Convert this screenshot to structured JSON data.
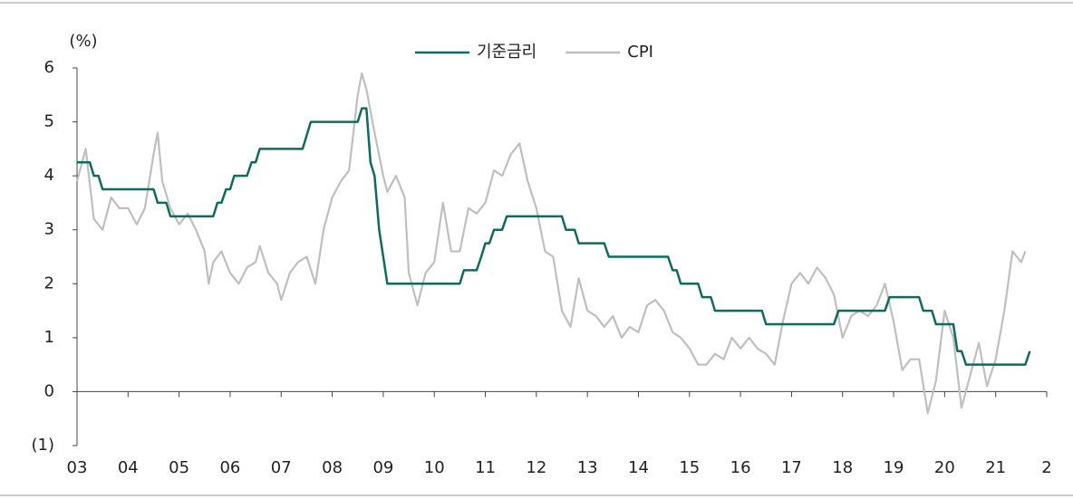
{
  "chart_data": {
    "type": "line",
    "y_unit": "(%)",
    "xlim": [
      2003,
      2022
    ],
    "xticks": [
      {
        "value": 2003,
        "label": "03"
      },
      {
        "value": 2004,
        "label": "04"
      },
      {
        "value": 2005,
        "label": "05"
      },
      {
        "value": 2006,
        "label": "06"
      },
      {
        "value": 2007,
        "label": "07"
      },
      {
        "value": 2008,
        "label": "08"
      },
      {
        "value": 2009,
        "label": "09"
      },
      {
        "value": 2010,
        "label": "10"
      },
      {
        "value": 2011,
        "label": "11"
      },
      {
        "value": 2012,
        "label": "12"
      },
      {
        "value": 2013,
        "label": "13"
      },
      {
        "value": 2014,
        "label": "14"
      },
      {
        "value": 2015,
        "label": "15"
      },
      {
        "value": 2016,
        "label": "16"
      },
      {
        "value": 2017,
        "label": "17"
      },
      {
        "value": 2018,
        "label": "18"
      },
      {
        "value": 2019,
        "label": "19"
      },
      {
        "value": 2020,
        "label": "20"
      },
      {
        "value": 2021,
        "label": "21"
      },
      {
        "value": 2022,
        "label": "2"
      }
    ],
    "ylim": [
      -1,
      6
    ],
    "yticks": [
      {
        "value": -1,
        "label": "(1)"
      },
      0,
      1,
      2,
      3,
      4,
      5,
      6
    ],
    "legend": "top",
    "series": [
      {
        "name": "기준금리",
        "color": "#0e6b5e",
        "x": [
          2003.0,
          2003.25,
          2003.33,
          2003.42,
          2003.5,
          2004.5,
          2004.58,
          2004.75,
          2004.83,
          2005.67,
          2005.75,
          2005.83,
          2005.92,
          2006.0,
          2006.08,
          2006.33,
          2006.42,
          2006.5,
          2006.58,
          2007.42,
          2007.5,
          2007.58,
          2008.5,
          2008.58,
          2008.67,
          2008.75,
          2008.83,
          2008.92,
          2009.0,
          2009.08,
          2010.5,
          2010.58,
          2010.83,
          2010.92,
          2011.0,
          2011.08,
          2011.17,
          2011.33,
          2011.42,
          2012.5,
          2012.58,
          2012.75,
          2012.83,
          2013.33,
          2013.42,
          2014.58,
          2014.67,
          2014.75,
          2014.83,
          2015.17,
          2015.25,
          2015.42,
          2015.5,
          2016.42,
          2016.5,
          2017.83,
          2017.92,
          2018.83,
          2018.92,
          2019.5,
          2019.58,
          2019.75,
          2019.83,
          2020.17,
          2020.25,
          2020.33,
          2020.42,
          2021.58,
          2021.67
        ],
        "values": [
          4.25,
          4.25,
          4.0,
          4.0,
          3.75,
          3.75,
          3.5,
          3.5,
          3.25,
          3.25,
          3.5,
          3.5,
          3.75,
          3.75,
          4.0,
          4.0,
          4.25,
          4.25,
          4.5,
          4.5,
          4.75,
          5.0,
          5.0,
          5.25,
          5.25,
          4.25,
          4.0,
          3.0,
          2.5,
          2.0,
          2.0,
          2.25,
          2.25,
          2.5,
          2.75,
          2.75,
          3.0,
          3.0,
          3.25,
          3.25,
          3.0,
          3.0,
          2.75,
          2.75,
          2.5,
          2.5,
          2.25,
          2.25,
          2.0,
          2.0,
          1.75,
          1.75,
          1.5,
          1.5,
          1.25,
          1.25,
          1.5,
          1.5,
          1.75,
          1.75,
          1.5,
          1.5,
          1.25,
          1.25,
          0.75,
          0.75,
          0.5,
          0.5,
          0.75
        ]
      },
      {
        "name": "CPI",
        "color": "#bfbfbf",
        "x": [
          2003.0,
          2003.17,
          2003.33,
          2003.5,
          2003.67,
          2003.83,
          2004.0,
          2004.17,
          2004.33,
          2004.5,
          2004.58,
          2004.67,
          2004.83,
          2005.0,
          2005.17,
          2005.33,
          2005.5,
          2005.58,
          2005.67,
          2005.83,
          2006.0,
          2006.17,
          2006.33,
          2006.5,
          2006.58,
          2006.75,
          2006.92,
          2007.0,
          2007.17,
          2007.33,
          2007.5,
          2007.67,
          2007.83,
          2008.0,
          2008.17,
          2008.33,
          2008.5,
          2008.58,
          2008.67,
          2008.83,
          2009.0,
          2009.08,
          2009.25,
          2009.42,
          2009.5,
          2009.67,
          2009.83,
          2010.0,
          2010.17,
          2010.33,
          2010.5,
          2010.67,
          2010.83,
          2011.0,
          2011.17,
          2011.33,
          2011.5,
          2011.67,
          2011.83,
          2012.0,
          2012.17,
          2012.33,
          2012.5,
          2012.67,
          2012.83,
          2013.0,
          2013.17,
          2013.33,
          2013.5,
          2013.67,
          2013.83,
          2014.0,
          2014.17,
          2014.33,
          2014.5,
          2014.67,
          2014.83,
          2015.0,
          2015.17,
          2015.33,
          2015.5,
          2015.67,
          2015.83,
          2016.0,
          2016.17,
          2016.33,
          2016.5,
          2016.67,
          2016.83,
          2017.0,
          2017.17,
          2017.33,
          2017.5,
          2017.67,
          2017.83,
          2018.0,
          2018.17,
          2018.33,
          2018.5,
          2018.67,
          2018.83,
          2019.0,
          2019.17,
          2019.33,
          2019.5,
          2019.67,
          2019.83,
          2020.0,
          2020.17,
          2020.33,
          2020.5,
          2020.67,
          2020.83,
          2021.0,
          2021.17,
          2021.33,
          2021.5,
          2021.58
        ],
        "values": [
          3.9,
          4.5,
          3.2,
          3.0,
          3.6,
          3.4,
          3.4,
          3.1,
          3.4,
          4.4,
          4.8,
          3.9,
          3.4,
          3.1,
          3.3,
          3.0,
          2.6,
          2.0,
          2.4,
          2.6,
          2.2,
          2.0,
          2.3,
          2.4,
          2.7,
          2.2,
          2.0,
          1.7,
          2.2,
          2.4,
          2.5,
          2.0,
          3.0,
          3.6,
          3.9,
          4.1,
          5.5,
          5.9,
          5.6,
          4.8,
          4.0,
          3.7,
          4.0,
          3.6,
          2.2,
          1.6,
          2.2,
          2.4,
          3.5,
          2.6,
          2.6,
          3.4,
          3.3,
          3.5,
          4.1,
          4.0,
          4.4,
          4.6,
          3.9,
          3.4,
          2.6,
          2.5,
          1.5,
          1.2,
          2.1,
          1.5,
          1.4,
          1.2,
          1.4,
          1.0,
          1.2,
          1.1,
          1.6,
          1.7,
          1.5,
          1.1,
          1.0,
          0.8,
          0.5,
          0.5,
          0.7,
          0.6,
          1.0,
          0.8,
          1.0,
          0.8,
          0.7,
          0.5,
          1.3,
          2.0,
          2.2,
          2.0,
          2.3,
          2.1,
          1.8,
          1.0,
          1.4,
          1.5,
          1.4,
          1.6,
          2.0,
          1.3,
          0.4,
          0.6,
          0.6,
          -0.4,
          0.2,
          1.5,
          1.0,
          -0.3,
          0.3,
          0.9,
          0.1,
          0.6,
          1.5,
          2.6,
          2.4,
          2.6
        ]
      }
    ]
  }
}
